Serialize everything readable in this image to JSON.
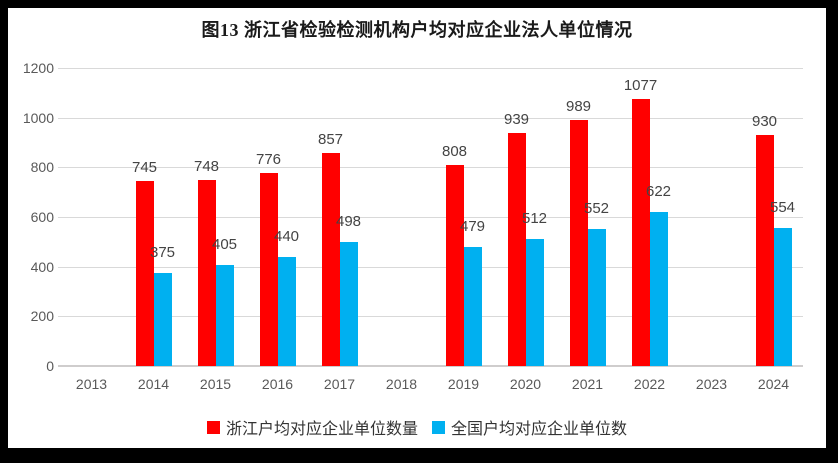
{
  "title": "图13 浙江省检验检测机构户均对应企业法人单位情况",
  "colors": {
    "zhejiang_series": "#FF0000",
    "national_series": "#00B0F0",
    "gridline": "#D9D9D9",
    "axis_line": "#CFCDCD",
    "frame": "#000000"
  },
  "chart_data": {
    "type": "bar",
    "title": "图13 浙江省检验检测机构户均对应企业法人单位情况",
    "categories": [
      "2013",
      "2014",
      "2015",
      "2016",
      "2017",
      "2018",
      "2019",
      "2020",
      "2021",
      "2022",
      "2023",
      "2024"
    ],
    "series": [
      {
        "name": "浙江户均对应企业单位数量",
        "color": "#FF0000",
        "values": [
          null,
          745,
          748,
          776,
          857,
          null,
          808,
          939,
          989,
          1077,
          null,
          930
        ]
      },
      {
        "name": "全国户均对应企业单位数",
        "color": "#00B0F0",
        "values": [
          null,
          375,
          405,
          440,
          498,
          null,
          479,
          512,
          552,
          622,
          null,
          554
        ]
      }
    ],
    "xlabel": "",
    "ylabel": "",
    "ylim": [
      0,
      1200
    ],
    "yticks": [
      0,
      200,
      400,
      600,
      800,
      1000,
      1200
    ],
    "grid": true,
    "data_labels": true,
    "legend_position": "bottom"
  }
}
